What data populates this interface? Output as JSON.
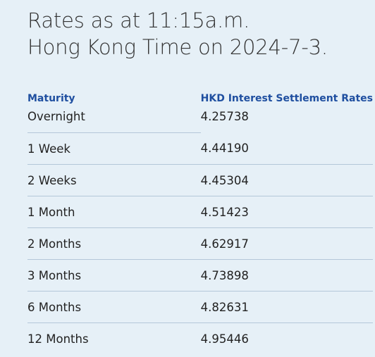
{
  "header": {
    "line1": "Rates as at 11:15a.m.",
    "line2": "Hong Kong Time on 2024-7-3."
  },
  "table": {
    "columns": [
      "Maturity",
      "HKD Interest Settlement Rates"
    ],
    "rows": [
      {
        "maturity": "Overnight",
        "rate": "4.25738"
      },
      {
        "maturity": "1 Week",
        "rate": "4.44190"
      },
      {
        "maturity": "2 Weeks",
        "rate": "4.45304"
      },
      {
        "maturity": "1 Month",
        "rate": "4.51423"
      },
      {
        "maturity": "2 Months",
        "rate": "4.62917"
      },
      {
        "maturity": "3 Months",
        "rate": "4.73898"
      },
      {
        "maturity": "6 Months",
        "rate": "4.82631"
      },
      {
        "maturity": "12 Months",
        "rate": "4.95446"
      }
    ]
  }
}
